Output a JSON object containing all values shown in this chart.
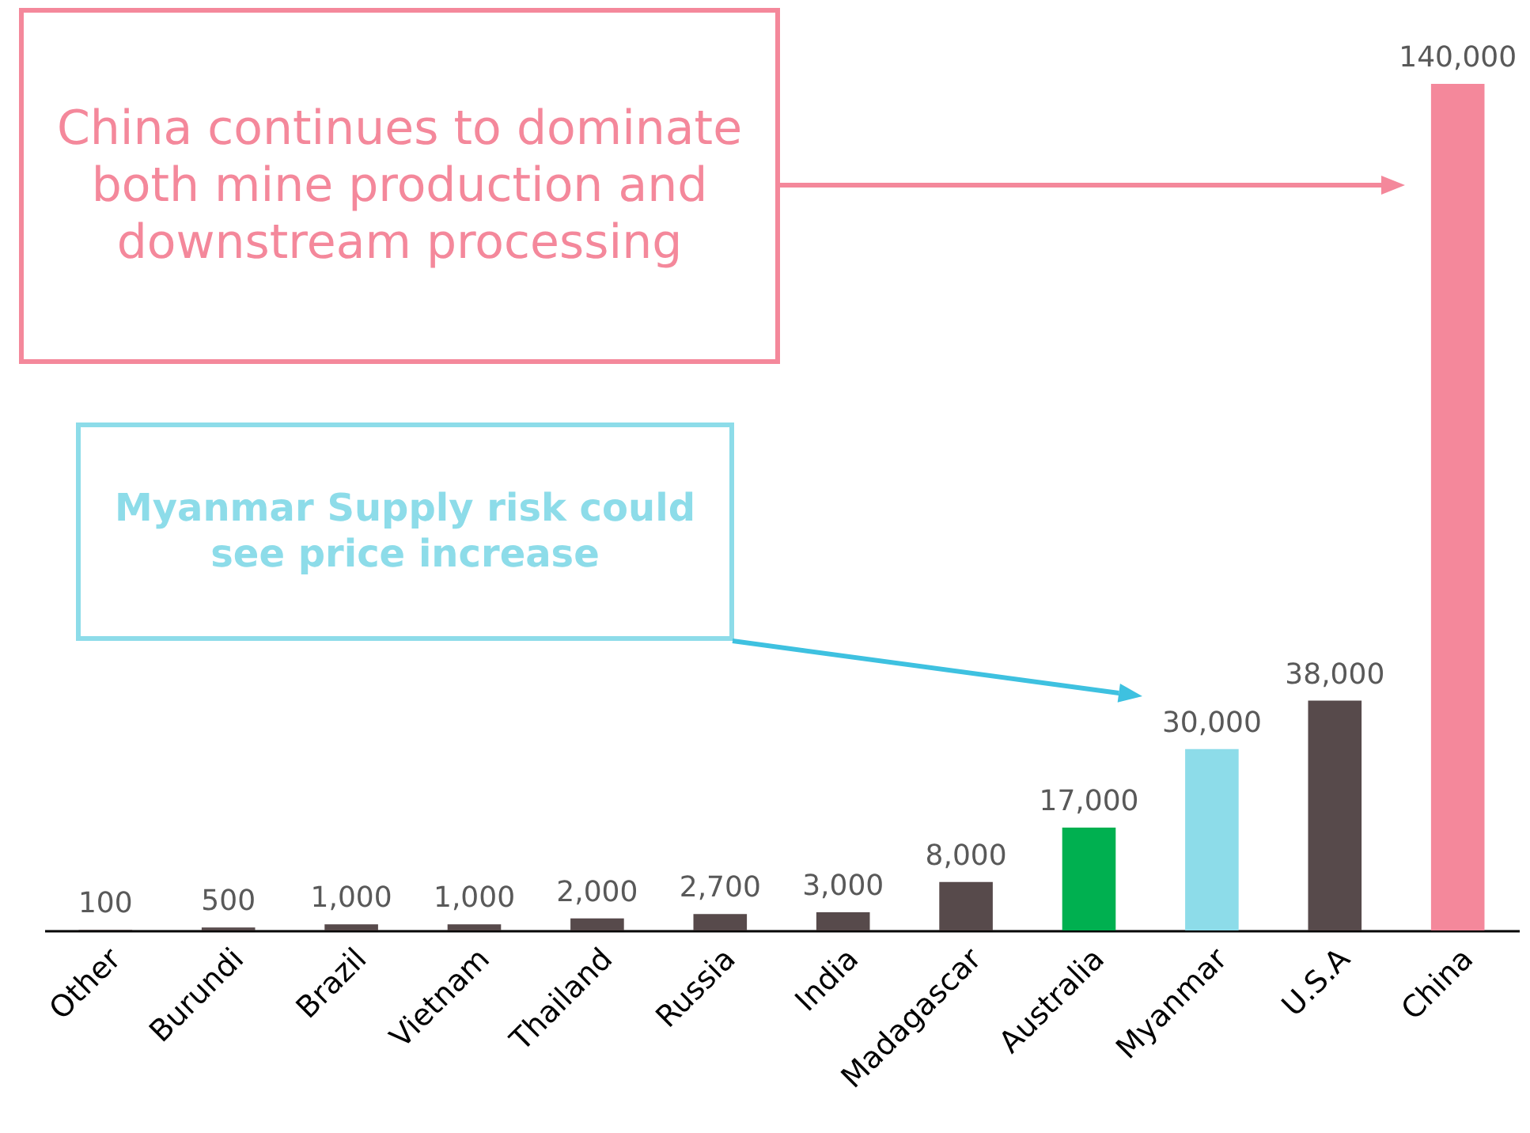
{
  "chart_data": {
    "type": "bar",
    "categories": [
      "Other",
      "Burundi",
      "Brazil",
      "Vietnam",
      "Thailand",
      "Russia",
      "India",
      "Madagascar",
      "Australia",
      "Myanmar",
      "U.S.A",
      "China"
    ],
    "values": [
      100,
      500,
      1000,
      1000,
      2000,
      2700,
      3000,
      8000,
      17000,
      30000,
      38000,
      140000
    ],
    "colors": [
      "#574a4b",
      "#574a4b",
      "#574a4b",
      "#574a4b",
      "#574a4b",
      "#574a4b",
      "#574a4b",
      "#574a4b",
      "#00b050",
      "#8ddce9",
      "#574a4b",
      "#f4889b"
    ],
    "value_labels": [
      "100",
      "500",
      "1,000",
      "1,000",
      "2,000",
      "2,700",
      "3,000",
      "8,000",
      "17,000",
      "30,000",
      "38,000",
      "140,000"
    ],
    "annotations": [
      "China continues to dominate both mine production and downstream processing",
      "Myanmar Supply risk could see price increase"
    ]
  }
}
